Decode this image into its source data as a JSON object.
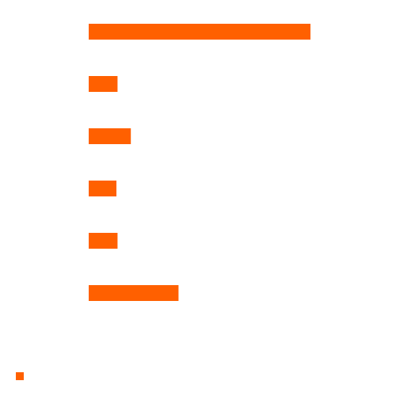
{
  "chart_data": {
    "type": "bar",
    "orientation": "horizontal",
    "title": "",
    "xlabel": "",
    "ylabel": "",
    "categories": [
      "",
      "",
      "",
      "",
      "",
      ""
    ],
    "values": [
      100,
      13,
      19,
      12.5,
      13,
      40.5
    ],
    "xlim": [
      0,
      100
    ],
    "grid": false,
    "axes_visible": false,
    "legend": "bottom-left",
    "color": "#ff6000"
  }
}
